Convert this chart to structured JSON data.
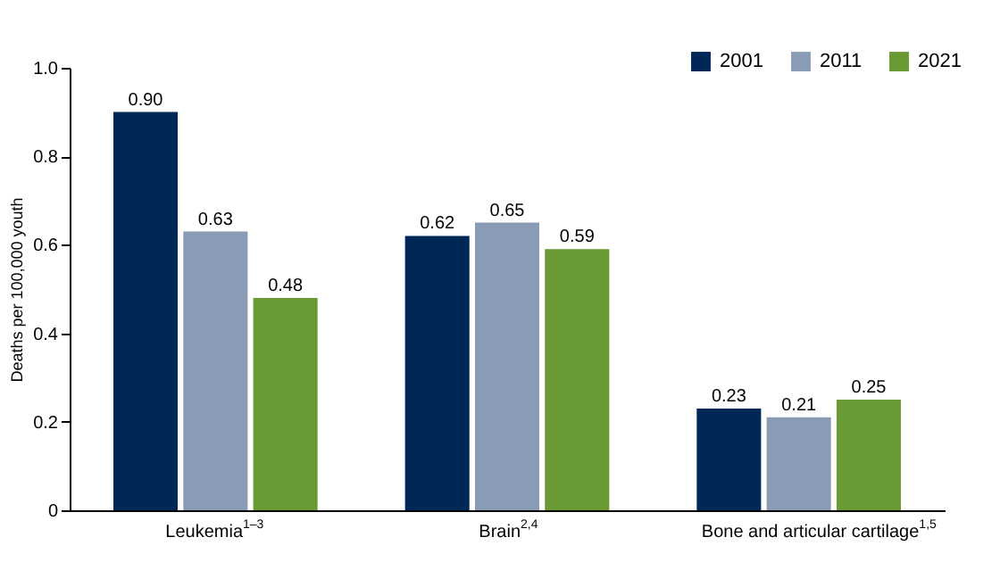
{
  "chart_data": {
    "type": "bar",
    "ylabel": "Deaths per 100,000 youth",
    "categories": [
      "Leukemia$^{1–3}$",
      "Brain$^{2,4}$",
      "Bone and articular cartilage$^{1,5}$"
    ],
    "series": [
      {
        "name": "2001",
        "color": "#002856",
        "values": [
          0.9,
          0.62,
          0.23
        ],
        "value_labels": [
          "0.90",
          "0.62",
          "0.23"
        ]
      },
      {
        "name": "2011",
        "color": "#8a9bb5",
        "values": [
          0.63,
          0.65,
          0.21
        ],
        "value_labels": [
          "0.63",
          "0.65",
          "0.21"
        ]
      },
      {
        "name": "2021",
        "color": "#6a9a34",
        "values": [
          0.48,
          0.59,
          0.25
        ],
        "value_labels": [
          "0.48",
          "0.59",
          "0.25"
        ]
      }
    ],
    "ylim": [
      0,
      1
    ],
    "yticks": [
      0,
      0.2,
      0.4,
      0.6,
      0.8,
      {
        "value": 1,
        "label": "1.0"
      }
    ],
    "grid": false,
    "legend": "top right"
  }
}
